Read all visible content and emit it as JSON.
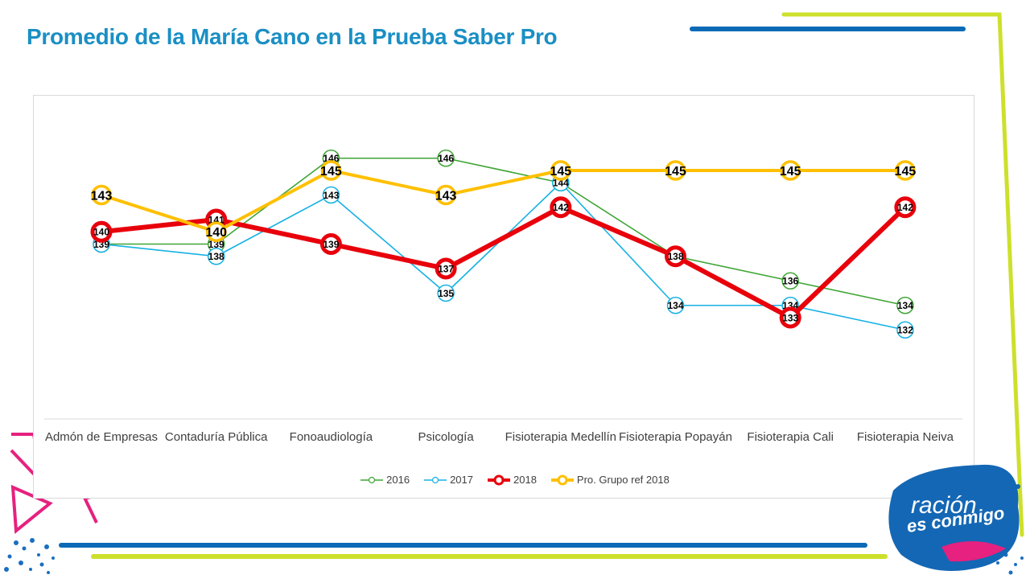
{
  "page": {
    "title": "Promedio de la María Cano en la Prueba Saber Pro"
  },
  "brand": {
    "text1": "ración",
    "text2": "es conmigo"
  },
  "colors": {
    "title": "#1a8fc4",
    "blue_line": "#0b6ab6",
    "green_line": "#cde02b"
  },
  "chart_data": {
    "type": "line",
    "title": "",
    "xlabel": "",
    "ylabel": "",
    "ylim": [
      120,
      152
    ],
    "grid": false,
    "legend_position": "bottom",
    "categories": [
      "Admón de Empresas",
      "Contaduría Pública",
      "Fonoaudiología",
      "Psicología",
      "Fisioterapia Medellín",
      "Fisioterapia Popayán",
      "Fisioterapia Cali",
      "Fisioterapia Neiva"
    ],
    "series": [
      {
        "name": "2016",
        "color": "#3fa535",
        "values": [
          139,
          139,
          146,
          146,
          144,
          138,
          136,
          134
        ]
      },
      {
        "name": "2017",
        "color": "#16b1e5",
        "values": [
          139,
          138,
          143,
          135,
          144,
          134,
          134,
          132
        ]
      },
      {
        "name": "2018",
        "color": "#e8000b",
        "values": [
          140,
          141,
          139,
          137,
          142,
          138,
          133,
          142
        ]
      },
      {
        "name": "Pro. Grupo ref 2018",
        "color": "#ffc000",
        "values": [
          143,
          140,
          145,
          143,
          145,
          145,
          145,
          145
        ]
      }
    ]
  }
}
